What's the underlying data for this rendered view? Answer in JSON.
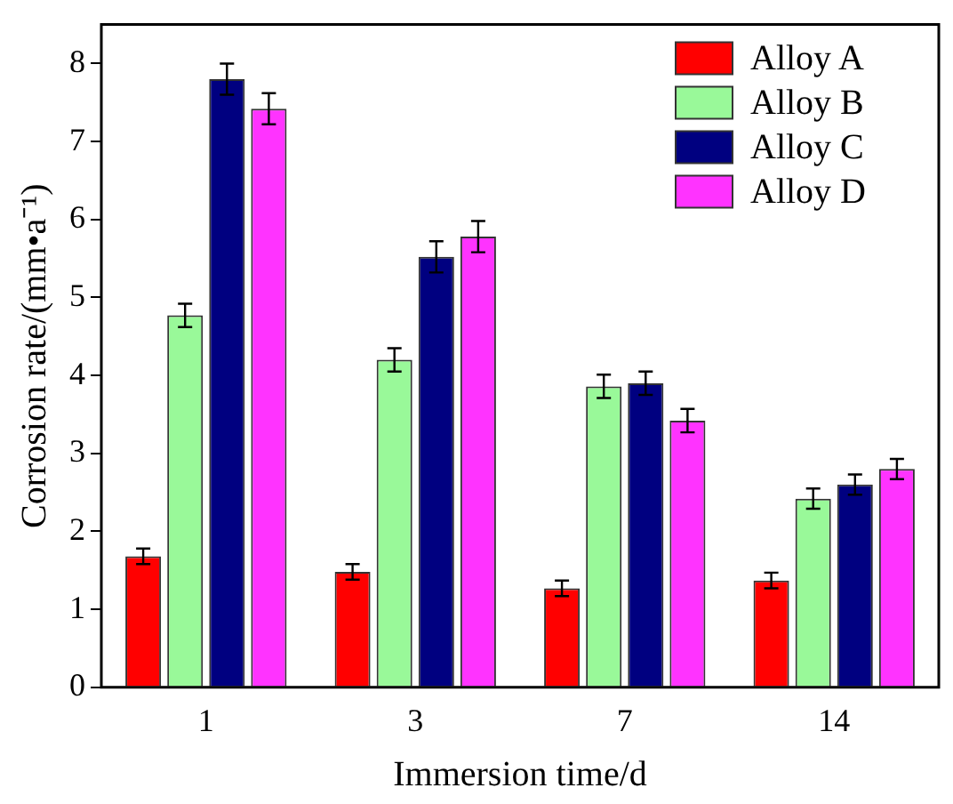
{
  "chart_data": {
    "type": "bar",
    "xlabel": "Immersion time/d",
    "ylabel": "Corrosion rate/(mm•a⁻¹)",
    "categories": [
      "1",
      "3",
      "7",
      "14"
    ],
    "series": [
      {
        "name": "Alloy A",
        "color": "#ff0000",
        "values": [
          1.68,
          1.48,
          1.27,
          1.37
        ],
        "errors": [
          0.1,
          0.1,
          0.1,
          0.1
        ]
      },
      {
        "name": "Alloy B",
        "color": "#99f999",
        "values": [
          4.77,
          4.2,
          3.86,
          2.42
        ],
        "errors": [
          0.15,
          0.15,
          0.15,
          0.13
        ]
      },
      {
        "name": "Alloy C",
        "color": "#000080",
        "values": [
          7.8,
          5.52,
          3.9,
          2.6
        ],
        "errors": [
          0.2,
          0.2,
          0.15,
          0.13
        ]
      },
      {
        "name": "Alloy D",
        "color": "#ff33ff",
        "values": [
          7.42,
          5.78,
          3.42,
          2.8
        ],
        "errors": [
          0.2,
          0.2,
          0.15,
          0.13
        ]
      }
    ],
    "ylim": [
      0,
      8.5
    ],
    "yticks": [
      0,
      1,
      2,
      3,
      4,
      5,
      6,
      7,
      8
    ],
    "grid": false,
    "legend": "top right"
  }
}
